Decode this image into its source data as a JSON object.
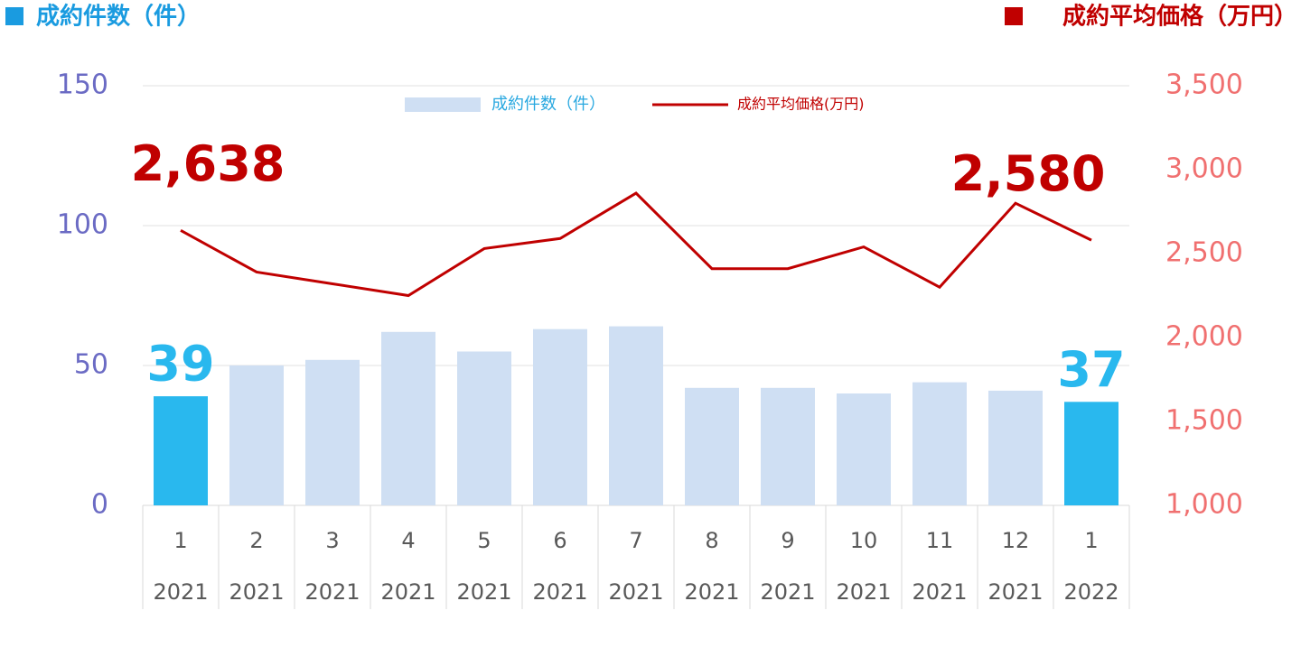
{
  "chart_data": {
    "type": "bar_line",
    "left_header": "成約件数（件）",
    "right_header": "成約平均価格（万円）",
    "categories": [
      "1",
      "2",
      "3",
      "4",
      "5",
      "6",
      "7",
      "8",
      "9",
      "10",
      "11",
      "12",
      "1"
    ],
    "years": [
      "2021",
      "2021",
      "2021",
      "2021",
      "2021",
      "2021",
      "2021",
      "2021",
      "2021",
      "2021",
      "2021",
      "2021",
      "2022"
    ],
    "series": [
      {
        "name": "成約件数（件）",
        "type": "bar",
        "color": "#cfdff3",
        "colors": [
          "#29b8ee",
          "#cfdff3",
          "#cfdff3",
          "#cfdff3",
          "#cfdff3",
          "#cfdff3",
          "#cfdff3",
          "#cfdff3",
          "#cfdff3",
          "#cfdff3",
          "#cfdff3",
          "#cfdff3",
          "#29b8ee"
        ],
        "values": [
          39,
          50,
          52,
          62,
          55,
          63,
          64,
          42,
          42,
          40,
          44,
          41,
          37
        ],
        "value_labels": [
          "39",
          null,
          null,
          null,
          null,
          null,
          null,
          null,
          null,
          null,
          null,
          null,
          "37"
        ]
      },
      {
        "name": "成約平均価格(万円)",
        "type": "line",
        "axis": "y2",
        "color": "#c00000",
        "values": [
          2638,
          2390,
          2320,
          2250,
          2530,
          2590,
          2860,
          2410,
          2410,
          2540,
          2300,
          2800,
          2580
        ],
        "value_labels": [
          "2,638",
          null,
          null,
          null,
          null,
          null,
          null,
          null,
          null,
          null,
          null,
          null,
          "2,580"
        ]
      }
    ],
    "ylim": [
      0,
      150
    ],
    "yticks": [
      0,
      50,
      100,
      150
    ],
    "y2lim": [
      1000,
      3500
    ],
    "y2ticks": [
      {
        "value": 1000,
        "label": "1,000"
      },
      {
        "value": 1500,
        "label": "1,500"
      },
      {
        "value": 2000,
        "label": "2,000"
      },
      {
        "value": 2500,
        "label": "2,500"
      },
      {
        "value": 3000,
        "label": "3,000"
      },
      {
        "value": 3500,
        "label": "3,500"
      }
    ],
    "grid": true
  }
}
